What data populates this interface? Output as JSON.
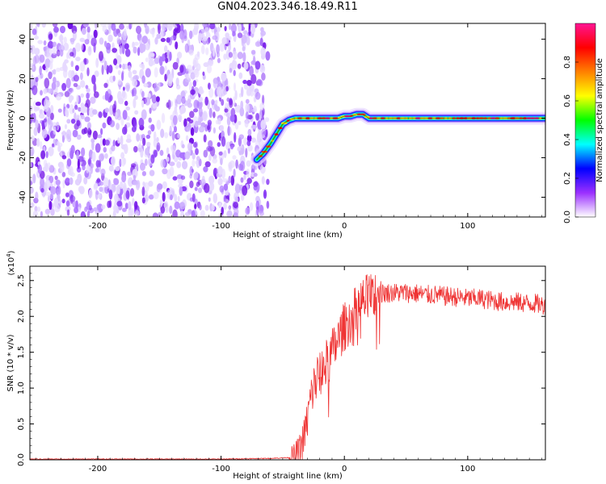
{
  "title": "GN04.2023.346.18.49.R11",
  "chart_data": [
    {
      "type": "heatmap",
      "title": "GN04.2023.346.18.49.R11",
      "xlabel": "Height of straight line (km)",
      "ylabel": "Frequency (Hz)",
      "xlim": [
        -255,
        163
      ],
      "ylim": [
        -50,
        48
      ],
      "xticks": [
        -200,
        -100,
        0,
        100
      ],
      "xtick_labels": [
        "-200",
        "-100",
        "0",
        "100"
      ],
      "yticks": [
        -40,
        -20,
        0,
        20,
        40
      ],
      "ytick_labels": [
        "-40",
        "-20",
        "0",
        "20",
        "40"
      ],
      "noise_region_x": [
        -255,
        -62
      ],
      "ridge": {
        "x": [
          -71,
          -66,
          -60,
          -55,
          -50,
          -45,
          -40,
          -30,
          -20,
          -10,
          -5,
          0,
          5,
          10,
          15,
          20,
          30,
          40,
          50,
          60,
          70,
          80,
          90,
          100,
          110,
          120,
          130,
          140,
          150,
          163
        ],
        "y": [
          -21,
          -18,
          -13,
          -8,
          -3,
          -1,
          0,
          0,
          0,
          0,
          0,
          1,
          1,
          2,
          2,
          0,
          0,
          0,
          0,
          0,
          0,
          0,
          0,
          0,
          0,
          0,
          0,
          0,
          0,
          0
        ]
      },
      "colorbar": {
        "label": "Normalized spectral amplitude",
        "range": [
          0,
          1
        ],
        "ticks": [
          0.0,
          0.2,
          0.4,
          0.6,
          0.8
        ],
        "tick_labels": [
          "0.0",
          "0.2",
          "0.4",
          "0.6",
          "0.8"
        ],
        "colors": [
          "#ffffff",
          "#9b30ff",
          "#0000ff",
          "#00ffff",
          "#00ff00",
          "#ffff00",
          "#ff8000",
          "#ff0000",
          "#ff1493"
        ]
      },
      "grid": false
    },
    {
      "type": "line",
      "xlabel": "Height of straight line (km)",
      "ylabel": "SNR (10 * v/v)",
      "y_multiplier": "(x10",
      "y_multiplier_exp": "4",
      "y_multiplier_close": ")",
      "xlim": [
        -255,
        163
      ],
      "ylim": [
        0,
        2.7
      ],
      "xticks": [
        -200,
        -100,
        0,
        100
      ],
      "xtick_labels": [
        "-200",
        "-100",
        "0",
        "100"
      ],
      "yticks": [
        0.0,
        0.5,
        1.0,
        1.5,
        2.0,
        2.5
      ],
      "ytick_labels": [
        "0.0",
        "0.5",
        "1.0",
        "1.5",
        "2.0",
        "2.5"
      ],
      "color": "#ef3434",
      "series": [
        {
          "x": [
            -255,
            -200,
            -150,
            -100,
            -60,
            -45,
            -40,
            -36,
            -33,
            -30,
            -28,
            -26,
            -24,
            -22,
            -20,
            -18,
            -16,
            -14,
            -12,
            -10,
            -8,
            -6,
            -4,
            -2,
            0,
            2,
            4,
            6,
            8,
            10,
            12,
            14,
            16,
            18,
            20,
            22,
            24,
            26,
            28,
            30,
            35,
            40,
            45,
            50,
            55,
            60,
            65,
            70,
            75,
            80,
            85,
            90,
            95,
            100,
            110,
            120,
            130,
            140,
            150,
            155,
            160,
            163
          ],
          "y": [
            0.01,
            0.01,
            0.01,
            0.01,
            0.02,
            0.03,
            0.06,
            0.15,
            0.3,
            0.55,
            0.8,
            0.95,
            1.05,
            1.15,
            1.2,
            1.25,
            1.3,
            1.35,
            1.4,
            1.5,
            1.55,
            1.65,
            1.7,
            1.8,
            1.85,
            1.9,
            1.95,
            2.0,
            2.05,
            2.1,
            2.15,
            2.2,
            2.2,
            2.25,
            2.25,
            2.3,
            2.3,
            2.3,
            2.32,
            2.32,
            2.33,
            2.33,
            2.33,
            2.33,
            2.32,
            2.32,
            2.3,
            2.3,
            2.3,
            2.28,
            2.28,
            2.27,
            2.26,
            2.25,
            2.25,
            2.22,
            2.2,
            2.2,
            2.18,
            2.18,
            2.16,
            2.16
          ]
        }
      ],
      "grid": false
    }
  ]
}
